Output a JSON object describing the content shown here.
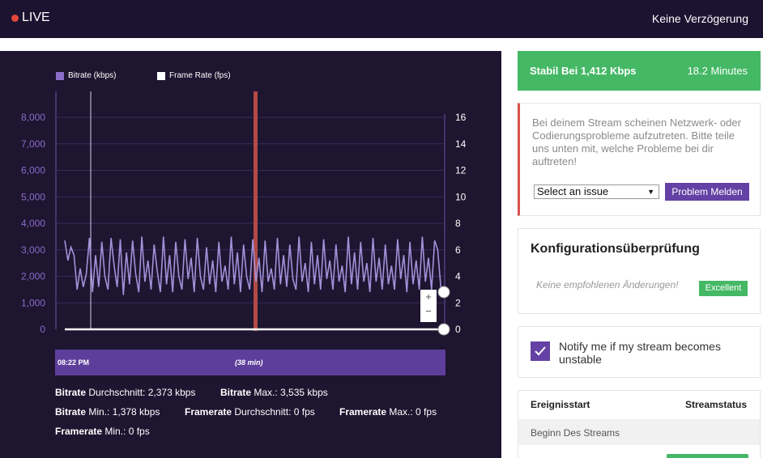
{
  "header": {
    "live_label": "LIVE",
    "delay_label": "Keine Verzögerung"
  },
  "legend": {
    "bitrate": "Bitrate (kbps)",
    "framerate": "Frame Rate (fps)"
  },
  "chart_data": {
    "type": "line",
    "title": "",
    "xlabel": "",
    "ylabel": "",
    "ylim": [
      0,
      8000
    ],
    "y2lim": [
      0,
      16
    ],
    "y_ticks": [
      "0",
      "1,000",
      "2,000",
      "3,000",
      "4,000",
      "5,000",
      "6,000",
      "7,000",
      "8,000"
    ],
    "y2_ticks": [
      "0",
      "2",
      "4",
      "6",
      "8",
      "10",
      "12",
      "14",
      "16"
    ],
    "grid": true,
    "legend_position": "top-left",
    "series": [
      {
        "name": "Bitrate (kbps)",
        "axis": "left",
        "color": "#a391d9",
        "values": [
          3350,
          2600,
          3100,
          2800,
          1500,
          2300,
          1600,
          2100,
          3450,
          1400,
          2800,
          1600,
          3300,
          2000,
          1500,
          3450,
          2400,
          1600,
          3400,
          1300,
          2900,
          1700,
          3350,
          2100,
          1400,
          3500,
          1800,
          2600,
          1500,
          3200,
          2200,
          1400,
          3500,
          1700,
          2800,
          1400,
          3300,
          2000,
          1500,
          3400,
          1900,
          2700,
          1400,
          3450,
          2000,
          1500,
          3100,
          1700,
          2600,
          1400,
          3300,
          1800,
          2400,
          1500,
          3500,
          1700,
          2900,
          1400,
          3200,
          2000,
          1500,
          3400,
          1800,
          2700,
          1400,
          3350,
          1800,
          2300,
          1500,
          3450,
          1700,
          2800,
          1600,
          3200,
          1900,
          1500,
          3500,
          1800,
          2500,
          1400,
          3300,
          1700,
          2800,
          1500,
          3400,
          1900,
          2600,
          1500,
          3200,
          1800,
          2400,
          1400,
          3500,
          1700,
          2900,
          1500,
          3300,
          1800,
          2500,
          1400,
          3450,
          1800,
          2700,
          1500,
          3200,
          1700,
          2400,
          1500,
          3400,
          1900,
          2800,
          1400,
          3300,
          1700,
          2600,
          1500,
          3500,
          1800,
          2700,
          1500,
          3350,
          3000,
          1600,
          1500
        ]
      },
      {
        "name": "Frame Rate (fps)",
        "axis": "right",
        "color": "#ffffff",
        "values": [
          0,
          0
        ]
      }
    ],
    "range_start_label": "08:22 PM",
    "range_duration_label": "(38 min)"
  },
  "zoom": {
    "plus": "+",
    "minus": "−"
  },
  "stats": {
    "bitrate_avg_label": "Bitrate",
    "bitrate_avg_rest": "Durchschnitt: 2,373 kbps",
    "bitrate_max_label": "Bitrate",
    "bitrate_max_rest": "Max.: 3,535 kbps",
    "bitrate_min_label": "Bitrate",
    "bitrate_min_rest": "Min.: 1,378 kbps",
    "framerate_avg_label": "Framerate",
    "framerate_avg_rest": "Durchschnitt: 0 fps",
    "framerate_max_label": "Framerate",
    "framerate_max_rest": "Max.: 0 fps",
    "framerate_min_label": "Framerate",
    "framerate_min_rest": "Min.: 0 fps"
  },
  "status": {
    "stable_label": "Stabil Bei 1,412 Kbps",
    "duration": "18.2 Minutes"
  },
  "issue": {
    "message": "Bei deinem Stream scheinen Netzwerk- oder Codierungsprobleme aufzutreten. Bitte teile uns unten mit, welche Probleme bei dir auftreten!",
    "select_value": "Select an issue",
    "report_button": "Problem Melden"
  },
  "config": {
    "title": "Konfigurationsüberprüfung",
    "note": "Keine empfohlenen Änderungen!",
    "badge": "Excellent"
  },
  "notify": {
    "label": "Notify me if my stream becomes unstable",
    "checked": true
  },
  "events": {
    "col_event": "Ereignisstart",
    "col_status": "Streamstatus",
    "rows": [
      {
        "event": "Beginn Des Streams"
      }
    ]
  },
  "colors": {
    "accent": "#6441a4",
    "success": "#45b865",
    "danger": "#d9534f",
    "chart_bg": "#1e1530",
    "header_bg": "#1b1330"
  }
}
